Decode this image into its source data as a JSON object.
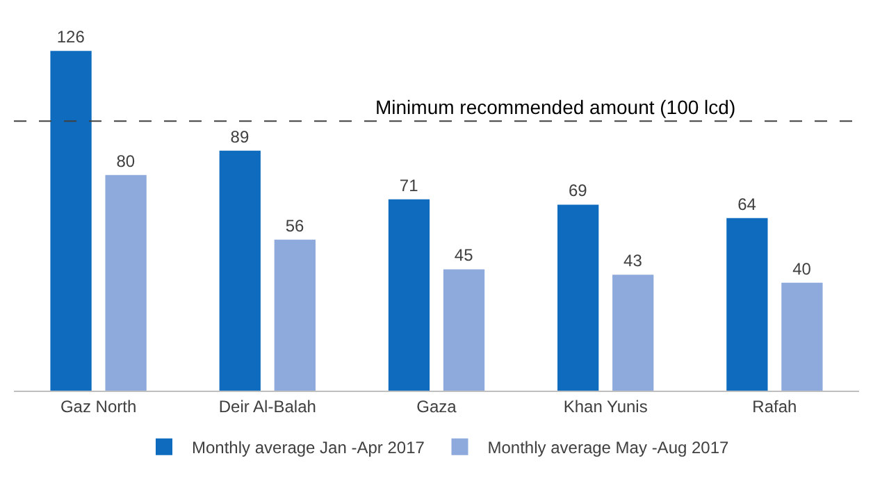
{
  "chart_data": {
    "type": "bar",
    "categories": [
      "Gaz North",
      "Deir Al-Balah",
      "Gaza",
      "Khan Yunis",
      "Rafah"
    ],
    "series": [
      {
        "name": "Monthly average Jan -Apr 2017",
        "color": "#0e6bbd",
        "values": [
          126,
          89,
          71,
          69,
          64
        ]
      },
      {
        "name": "Monthly average May -Aug 2017",
        "color": "#8ea9db",
        "values": [
          80,
          56,
          45,
          43,
          40
        ]
      }
    ],
    "data_labels": true,
    "ref_lines": [
      {
        "axis": "y",
        "value": 100,
        "label": "Minimum recommended amount (100 lcd)",
        "color": "#404040",
        "line_style": "dashed"
      }
    ],
    "legend": "bottom"
  }
}
